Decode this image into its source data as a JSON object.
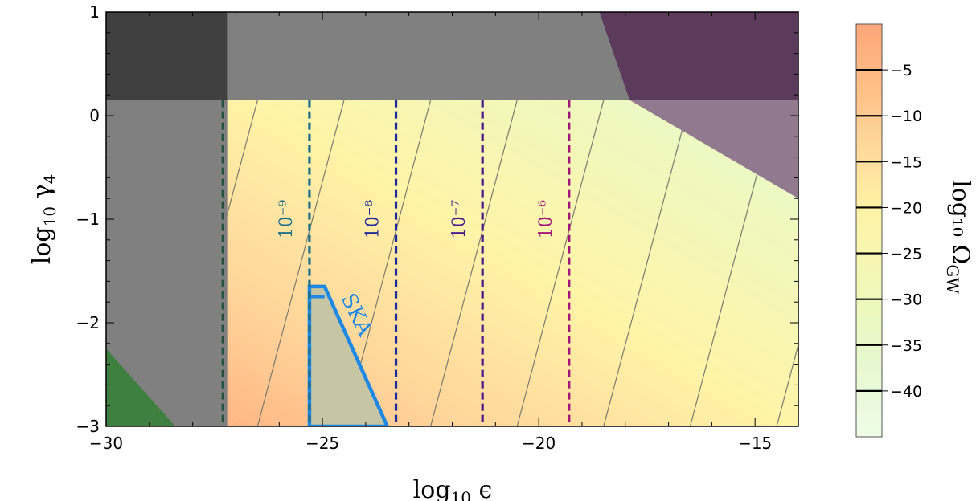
{
  "chart_data": [
    {
      "type": "contour",
      "xlabel": "log₁₀ ϵ",
      "ylabel": "log₁₀ γ₄",
      "xlim": [
        -30,
        -14
      ],
      "ylim": [
        -3,
        1
      ],
      "xticks": [
        -30,
        -25,
        -20,
        -15
      ],
      "yticks": [
        -3,
        -2,
        -1,
        0,
        1
      ],
      "xtick_labels": [
        "−30",
        "−25",
        "−20",
        "−15"
      ],
      "ytick_labels": [
        "−3",
        "−2",
        "−1",
        "0",
        "1"
      ],
      "grid": false,
      "contour_lines": {
        "color": "#7a7a6e",
        "x_at_bottom": [
          -28.5,
          -26.5,
          -24.5,
          -22.5,
          -20.5,
          -18.5,
          -16.5,
          -14.5
        ],
        "x_at_top": [
          -26.5,
          -24.5,
          -22.5,
          -20.5,
          -18.5,
          -16.5,
          -14.5,
          -12.5
        ]
      },
      "shaded_regions": [
        {
          "label": "",
          "color": "#404040",
          "x": [
            -30,
            -27.2
          ],
          "y": [
            0.15,
            1
          ]
        },
        {
          "label": "",
          "color": "#808080",
          "x": [
            -30,
            -27.2
          ],
          "y": [
            -3,
            0.15
          ]
        },
        {
          "label": "",
          "color": "#808080",
          "x": [
            -27.2,
            -14
          ],
          "y": [
            0.15,
            1
          ]
        },
        {
          "label": "",
          "color": "#5c3a5c",
          "polygon": [
            [
              -18.6,
              1
            ],
            [
              -14,
              1
            ],
            [
              -14,
              0.15
            ],
            [
              -17.9,
              0.15
            ]
          ]
        },
        {
          "label": "",
          "color": "#917a8f",
          "polygon": [
            [
              -17.9,
              0.15
            ],
            [
              -14,
              0.15
            ],
            [
              -14,
              -0.8
            ]
          ]
        },
        {
          "label": "",
          "color": "#3f7f3f",
          "polygon": [
            [
              -30,
              -2.25
            ],
            [
              -30,
              -3
            ],
            [
              -28.4,
              -3
            ]
          ]
        }
      ],
      "vertical_lines": [
        {
          "x": -27.3,
          "color": "#1f4d3a",
          "label": ""
        },
        {
          "x": -25.3,
          "color": "#1e6e8c",
          "label": "10⁻⁹",
          "label_y": -1.0
        },
        {
          "x": -23.3,
          "color": "#1e2a9c",
          "label": "10⁻⁸",
          "label_y": -1.0
        },
        {
          "x": -21.3,
          "color": "#4a1a8c",
          "label": "10⁻⁷",
          "label_y": -1.0
        },
        {
          "x": -19.3,
          "color": "#a0157a",
          "label": "10⁻⁶",
          "label_y": -1.0
        }
      ],
      "ska_region": {
        "label": "SKA",
        "color": "#1e88e5",
        "fill": "#c6c6a4",
        "polygon": [
          [
            -25.3,
            -1.65
          ],
          [
            -24.95,
            -1.65
          ],
          [
            -23.5,
            -3
          ],
          [
            -25.3,
            -3
          ]
        ]
      }
    },
    {
      "type": "colorbar",
      "label": "log₁₀ Ω_GW",
      "label_main": "log₁₀ Ω",
      "label_sub": "GW",
      "range": [
        -45,
        0
      ],
      "ticks": [
        -5,
        -10,
        -15,
        -20,
        -25,
        -30,
        -35,
        -40
      ],
      "tick_labels": [
        "−5",
        "−10",
        "−15",
        "−20",
        "−25",
        "−30",
        "−35",
        "−40"
      ],
      "color_stops": [
        {
          "v": 0,
          "color": "#ffa67a"
        },
        {
          "v": -7,
          "color": "#ffbf86"
        },
        {
          "v": -13,
          "color": "#ffd79a"
        },
        {
          "v": -20,
          "color": "#fff2a6"
        },
        {
          "v": -28,
          "color": "#f2f8b6"
        },
        {
          "v": -36,
          "color": "#e6f8cc"
        },
        {
          "v": -45,
          "color": "#eefce8"
        }
      ]
    }
  ]
}
